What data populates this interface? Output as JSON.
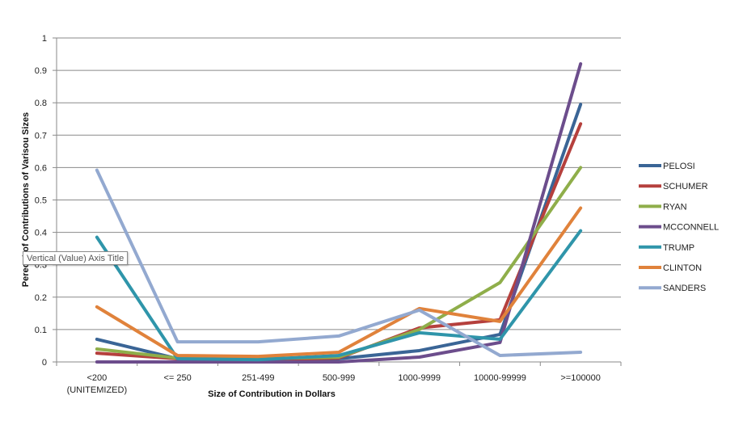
{
  "chart_data": {
    "type": "line",
    "title": "",
    "xlabel": "Size of Contribution in Dollars",
    "ylabel": "Perecnt of Contributions  of Varisou Sizes",
    "categories": [
      "<200\n(UNITEMIZED)",
      "<= 250",
      "251-499",
      "500-999",
      "1000-9999",
      "10000-99999",
      ">=100000"
    ],
    "ylim": [
      0,
      1
    ],
    "yticks": [
      "0",
      "0.1",
      "0.2",
      "0.3",
      "0.4",
      "0.5",
      "0.6",
      "0.7",
      "0.8",
      "0.9",
      "1"
    ],
    "grid": true,
    "legend_position": "right",
    "series": [
      {
        "name": "PELOSI",
        "color": "#3a6596",
        "values": [
          0.07,
          0.01,
          0.005,
          0.01,
          0.035,
          0.085,
          0.795
        ]
      },
      {
        "name": "SCHUMER",
        "color": "#b5403d",
        "values": [
          0.027,
          0.01,
          0.007,
          0.012,
          0.105,
          0.13,
          0.735
        ]
      },
      {
        "name": "RYAN",
        "color": "#8fae4a",
        "values": [
          0.04,
          0.012,
          0.01,
          0.015,
          0.1,
          0.245,
          0.6
        ]
      },
      {
        "name": "MCCONNELL",
        "color": "#6c4d8c",
        "values": [
          0.0,
          0.0,
          0.0,
          0.0,
          0.015,
          0.06,
          0.92
        ]
      },
      {
        "name": "TRUMP",
        "color": "#2f95aa",
        "values": [
          0.385,
          0.01,
          0.007,
          0.02,
          0.09,
          0.07,
          0.405
        ]
      },
      {
        "name": "CLINTON",
        "color": "#e0823b",
        "values": [
          0.17,
          0.02,
          0.017,
          0.03,
          0.165,
          0.125,
          0.475
        ]
      },
      {
        "name": "SANDERS",
        "color": "#93a9d0",
        "values": [
          0.592,
          0.062,
          0.062,
          0.08,
          0.16,
          0.02,
          0.03
        ]
      }
    ]
  },
  "tooltip": {
    "text": "Vertical (Value) Axis Title"
  }
}
